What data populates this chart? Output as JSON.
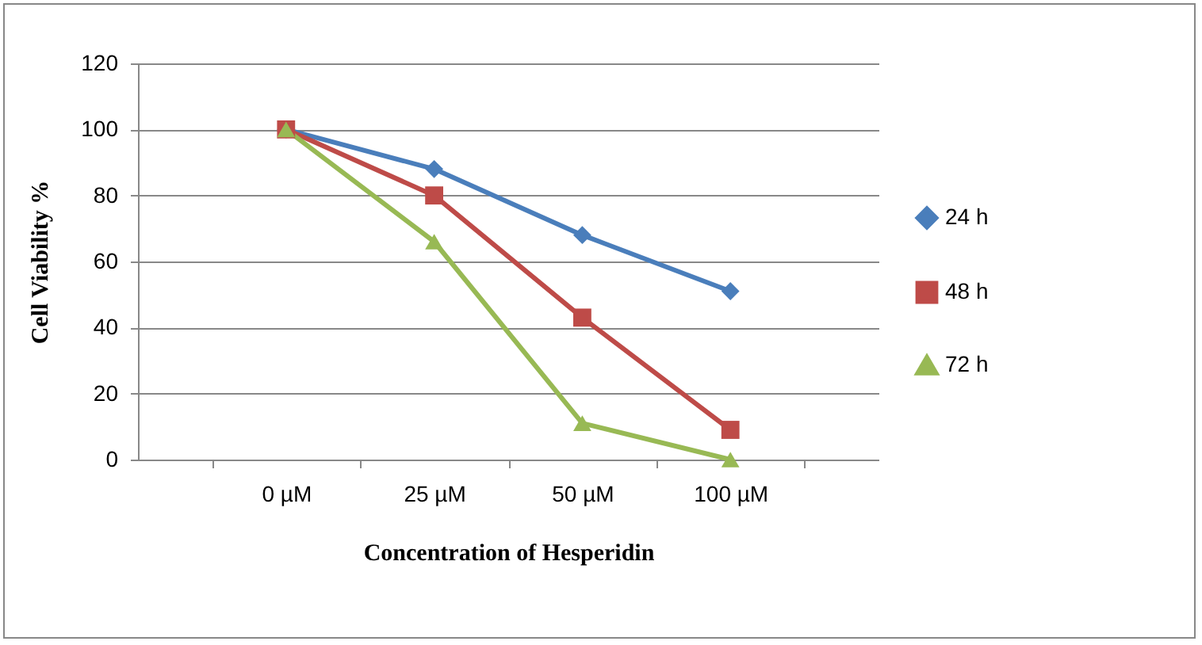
{
  "chart_data": {
    "type": "line",
    "xlabel": "Concentration of Hesperidin",
    "ylabel": "Cell Viability %",
    "categories": [
      "0 µM",
      "25 µM",
      "50 µM",
      "100 µM"
    ],
    "ylim": [
      0,
      120
    ],
    "yticks": [
      0,
      20,
      40,
      60,
      80,
      100,
      120
    ],
    "grid": "y",
    "legend": "right",
    "series": [
      {
        "name": "24 h",
        "color": "#4a7ebb",
        "marker": "diamond",
        "values": [
          100,
          88,
          68,
          51
        ]
      },
      {
        "name": "48 h",
        "color": "#be4b48",
        "marker": "square",
        "values": [
          100,
          80,
          43,
          9
        ]
      },
      {
        "name": "72 h",
        "color": "#98b954",
        "marker": "triangle",
        "values": [
          100,
          66,
          11,
          0
        ]
      }
    ]
  }
}
